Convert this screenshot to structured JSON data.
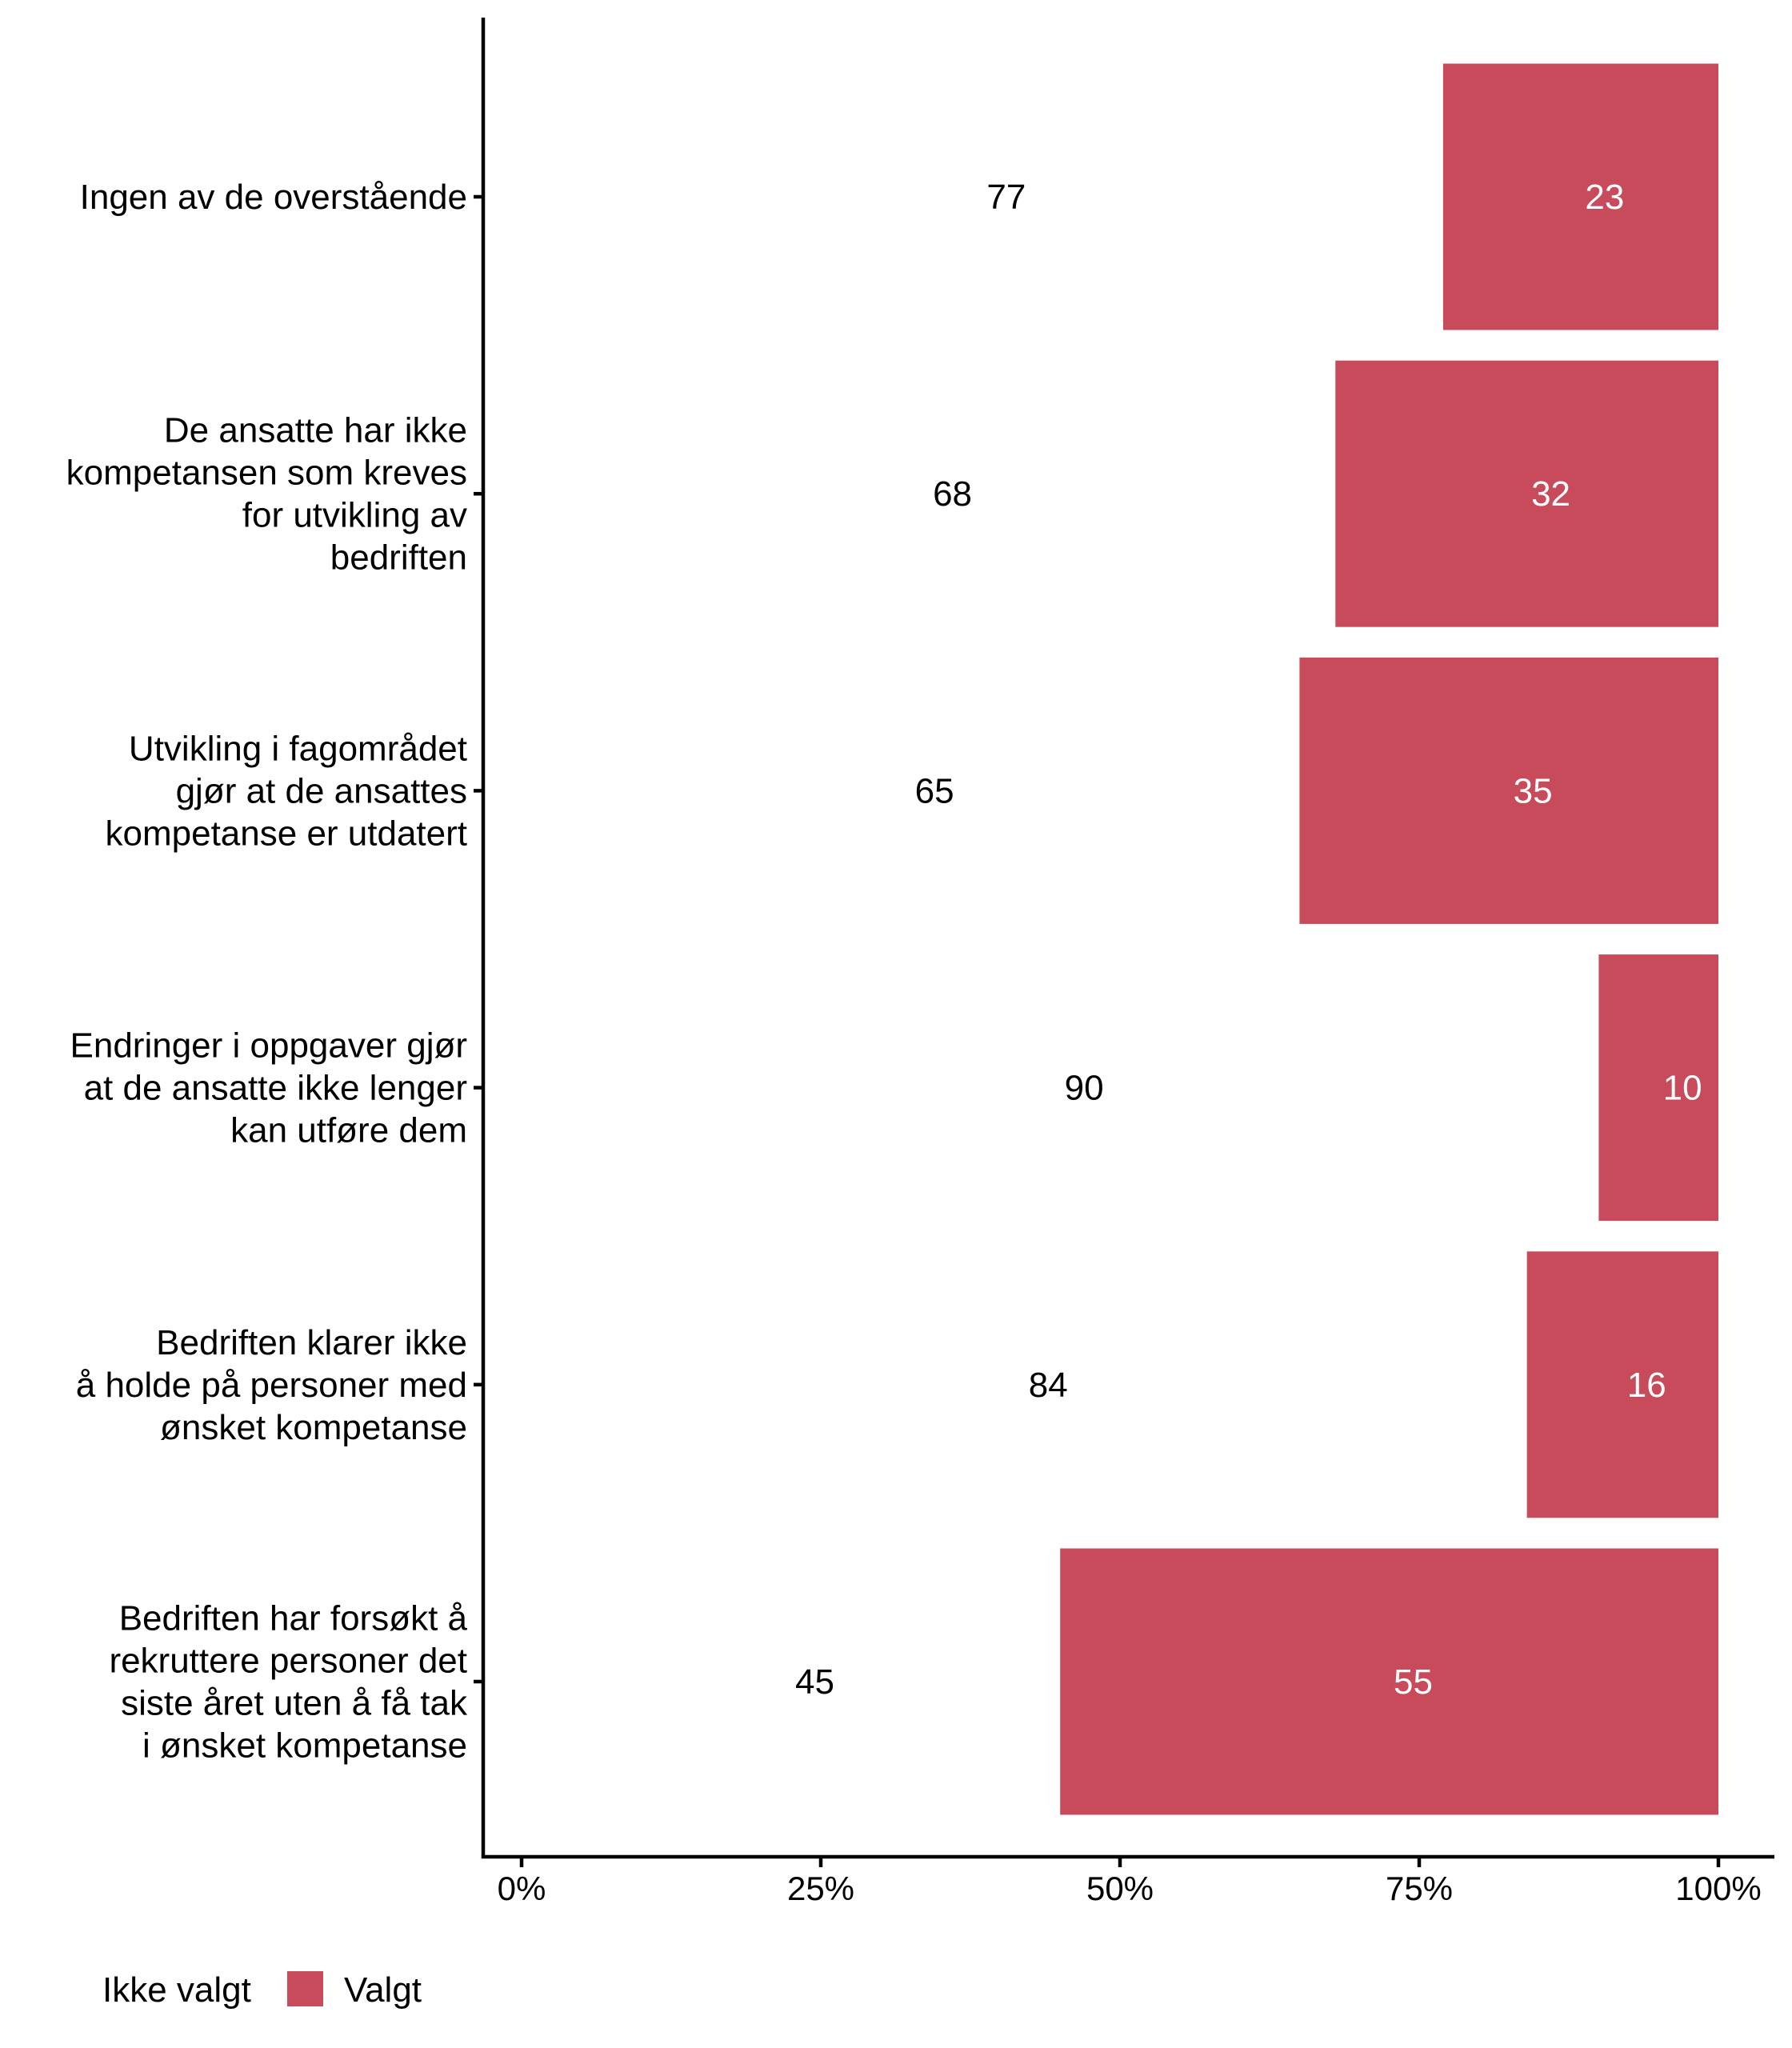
{
  "chart_data": {
    "type": "bar",
    "orientation": "horizontal",
    "stacked": true,
    "title": "",
    "xlabel": "",
    "ylabel": "",
    "xlim": [
      0,
      100
    ],
    "x_tick_labels": [
      "0%",
      "25%",
      "50%",
      "75%",
      "100%"
    ],
    "x_ticks": [
      0,
      25,
      50,
      75,
      100
    ],
    "grid": false,
    "legend_position": "bottom-left",
    "categories": [
      "Ingen av de overstående",
      "De ansatte har ikke kompetansen som kreves for utvikling av bedriften",
      "Utvikling i fagområdet gjør at de ansattes kompetanse er utdatert",
      "Endringer i oppgaver gjør at de ansatte ikke lenger kan utføre dem",
      "Bedriften klarer ikke å holde på personer med ønsket kompetanse",
      "Bedriften har forsøkt å rekruttere personer det siste året uten å få tak i ønsket kompetanse"
    ],
    "category_lines": [
      [
        "Ingen av de overstående"
      ],
      [
        "De ansatte har ikke",
        "kompetansen som kreves",
        "for utvikling av",
        "bedriften"
      ],
      [
        "Utvikling i fagområdet",
        "gjør at de ansattes",
        "kompetanse er utdatert"
      ],
      [
        "Endringer i oppgaver gjør",
        "at de ansatte ikke lenger",
        "kan utføre dem"
      ],
      [
        "Bedriften klarer ikke",
        "å holde på personer med",
        "ønsket kompetanse"
      ],
      [
        "Bedriften har forsøkt å",
        "rekruttere personer det",
        "siste året uten å få tak",
        "i ønsket kompetanse"
      ]
    ],
    "series": [
      {
        "name": "Ikke valgt",
        "values": [
          77,
          68,
          65,
          90,
          84,
          45
        ],
        "color": "#FFFFFF",
        "label_color": "#000000"
      },
      {
        "name": "Valgt",
        "values": [
          23,
          32,
          35,
          10,
          16,
          55
        ],
        "color": "#C84B5B",
        "label_color": "#FFFFFF"
      }
    ]
  }
}
